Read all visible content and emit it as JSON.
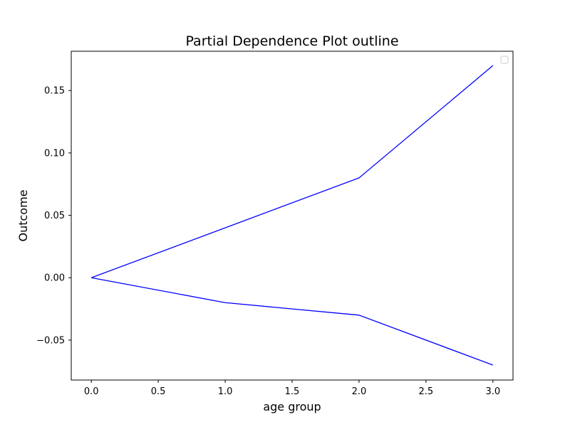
{
  "chart_data": {
    "type": "line",
    "title": "Partial Dependence Plot outline",
    "xlabel": "age group",
    "ylabel": "Outcome",
    "xlim": [
      -0.15,
      3.15
    ],
    "ylim": [
      -0.082,
      0.1815
    ],
    "x_ticks": [
      0.0,
      0.5,
      1.0,
      1.5,
      2.0,
      2.5,
      3.0
    ],
    "x_tick_labels": [
      "0.0",
      "0.5",
      "1.0",
      "1.5",
      "2.0",
      "2.5",
      "3.0"
    ],
    "y_ticks": [
      -0.05,
      0.0,
      0.05,
      0.1,
      0.15
    ],
    "y_tick_labels": [
      "−0.05",
      "0.00",
      "0.05",
      "0.10",
      "0.15"
    ],
    "grid": false,
    "legend": {
      "placement": "upper right",
      "entries": []
    },
    "x": [
      0,
      1,
      2,
      3
    ],
    "series": [
      {
        "values": [
          0.0,
          0.04,
          0.08,
          0.17
        ],
        "color": "#0000ff"
      },
      {
        "values": [
          0.0,
          -0.02,
          -0.03,
          -0.07
        ],
        "color": "#0000ff"
      }
    ]
  }
}
